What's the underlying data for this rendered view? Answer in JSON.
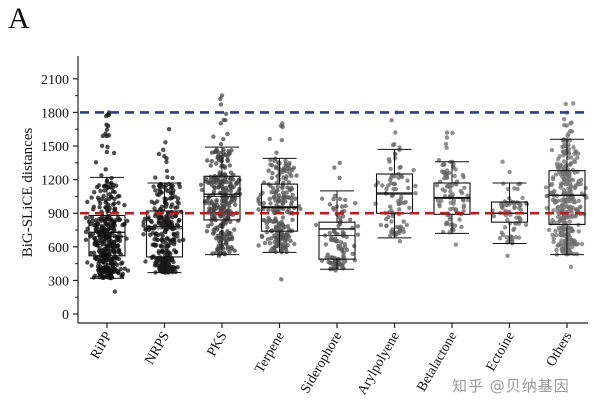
{
  "panel_label": "A",
  "watermark": "知乎 @贝纳基因",
  "chart_data": {
    "type": "box",
    "title": "",
    "xlabel": "",
    "ylabel": "BiG-SLiCE distances",
    "ylim": [
      -80,
      2250
    ],
    "yticks": [
      0,
      300,
      600,
      900,
      1200,
      1500,
      1800,
      2100
    ],
    "categories": [
      "RiPP",
      "NRPS",
      "PKS",
      "Terpene",
      "Siderophore",
      "Arylpolyene",
      "Betalactone",
      "Ectoine",
      "Others"
    ],
    "boxes": [
      {
        "name": "RiPP",
        "whisker_low": 320,
        "q1": 520,
        "median": 730,
        "q3": 880,
        "whisker_high": 1220,
        "min": 200,
        "max": 1800,
        "mean": 690,
        "n": 380,
        "dot_color": "#111111"
      },
      {
        "name": "NRPS",
        "whisker_low": 370,
        "q1": 510,
        "median": 780,
        "q3": 920,
        "whisker_high": 1170,
        "min": 370,
        "max": 1650,
        "mean": 760,
        "n": 300,
        "dot_color": "#1a1a1a"
      },
      {
        "name": "PKS",
        "whisker_low": 530,
        "q1": 840,
        "median": 1070,
        "q3": 1230,
        "whisker_high": 1490,
        "min": 520,
        "max": 1950,
        "mean": 1050,
        "n": 280,
        "dot_color": "#444444"
      },
      {
        "name": "Terpene",
        "whisker_low": 550,
        "q1": 740,
        "median": 950,
        "q3": 1160,
        "whisker_high": 1390,
        "min": 310,
        "max": 1700,
        "mean": 960,
        "n": 230,
        "dot_color": "#555555"
      },
      {
        "name": "Siderophore",
        "whisker_low": 400,
        "q1": 490,
        "median": 760,
        "q3": 820,
        "whisker_high": 1100,
        "min": 390,
        "max": 1350,
        "mean": 700,
        "n": 110,
        "dot_color": "#5a5a5a"
      },
      {
        "name": "Arylpolyene",
        "whisker_low": 680,
        "q1": 900,
        "median": 1080,
        "q3": 1250,
        "whisker_high": 1470,
        "min": 650,
        "max": 1800,
        "mean": 1070,
        "n": 90,
        "dot_color": "#666666"
      },
      {
        "name": "Betalactone",
        "whisker_low": 720,
        "q1": 890,
        "median": 1040,
        "q3": 1170,
        "whisker_high": 1360,
        "min": 620,
        "max": 1620,
        "mean": 1030,
        "n": 90,
        "dot_color": "#6a6a6a"
      },
      {
        "name": "Ectoine",
        "whisker_low": 630,
        "q1": 820,
        "median": 900,
        "q3": 1000,
        "whisker_high": 1170,
        "min": 520,
        "max": 1360,
        "mean": 900,
        "n": 80,
        "dot_color": "#6e6e6e"
      },
      {
        "name": "Others",
        "whisker_low": 530,
        "q1": 800,
        "median": 1060,
        "q3": 1280,
        "whisker_high": 1560,
        "min": 420,
        "max": 1880,
        "mean": 1060,
        "n": 330,
        "dot_color": "#707070"
      }
    ],
    "reference_lines": [
      {
        "name": "upper-threshold",
        "value": 1800,
        "color": "#2e3d86",
        "style": "dashed"
      },
      {
        "name": "lower-threshold",
        "value": 900,
        "color": "#b5201c",
        "style": "dashed"
      }
    ],
    "grid": false,
    "legend": "none"
  }
}
